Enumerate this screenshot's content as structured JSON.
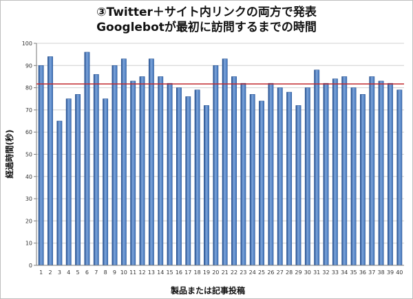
{
  "chart_data": {
    "type": "bar",
    "title_lines": [
      "③Twitter＋サイト内リンクの両方で発表",
      "Googlebotが最初に訪問するまでの時間"
    ],
    "xlabel": "製品または記事投稿",
    "ylabel": "経過時間(秒)",
    "ylim": [
      0,
      100
    ],
    "yticks": [
      "0",
      "10",
      "20",
      "30",
      "40",
      "50",
      "60",
      "70",
      "80",
      "90",
      "100"
    ],
    "categories": [
      "1",
      "2",
      "3",
      "4",
      "5",
      "6",
      "7",
      "8",
      "9",
      "10",
      "11",
      "12",
      "13",
      "14",
      "15",
      "16",
      "17",
      "18",
      "19",
      "20",
      "21",
      "22",
      "23",
      "24",
      "25",
      "26",
      "27",
      "28",
      "29",
      "30",
      "31",
      "32",
      "33",
      "34",
      "35",
      "36",
      "37",
      "38",
      "39",
      "40"
    ],
    "values": [
      90,
      94,
      65,
      75,
      77,
      96,
      86,
      75,
      90,
      93,
      83,
      85,
      93,
      85,
      82,
      80,
      76,
      79,
      72,
      90,
      93,
      85,
      82,
      77,
      74,
      82,
      80,
      78,
      72,
      80,
      88,
      82,
      84,
      85,
      80,
      77,
      85,
      83,
      82,
      79
    ],
    "reference_line": 81.7,
    "grid": true,
    "colors": {
      "bar_fill": "#3f72b8",
      "bar_dark": "#1f4a8a",
      "bar_light": "#7ea6dc",
      "grid": "#cfcfcf",
      "reference_line": "#c0282d"
    }
  }
}
